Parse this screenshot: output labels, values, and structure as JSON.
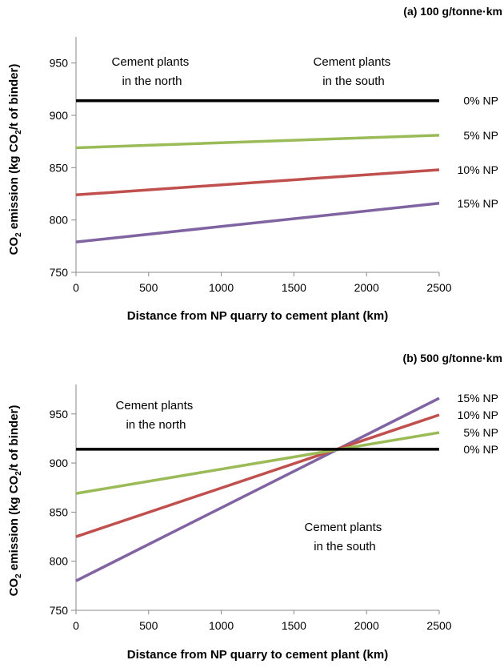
{
  "chart_data": [
    {
      "type": "line",
      "title": "(a) 100 g/tonne·km",
      "xlabel": "Distance from NP quarry to cement plant (km)",
      "ylabel_parts": [
        "CO",
        "2",
        " emission (kg CO",
        "2",
        "/t of binder)"
      ],
      "xlim": [
        0,
        2500
      ],
      "ylim": [
        750,
        975
      ],
      "xticks": [
        0,
        500,
        1000,
        1500,
        2000,
        2500
      ],
      "yticks": [
        750,
        800,
        850,
        900,
        950
      ],
      "grid": false,
      "legend": "line-end labels",
      "series": [
        {
          "name": "0% NP",
          "color": "#000000",
          "x": [
            0,
            2500
          ],
          "y": [
            914,
            914
          ]
        },
        {
          "name": "5% NP",
          "color": "#9bbb59",
          "x": [
            0,
            2500
          ],
          "y": [
            869,
            881
          ]
        },
        {
          "name": "10% NP",
          "color": "#c0504d",
          "x": [
            0,
            2500
          ],
          "y": [
            824,
            848
          ]
        },
        {
          "name": "15% NP",
          "color": "#8064a2",
          "x": [
            0,
            2500
          ],
          "y": [
            779,
            816
          ]
        }
      ],
      "annotations": [
        {
          "lines": [
            "Cement plants",
            "in the north"
          ]
        },
        {
          "lines": [
            "Cement plants",
            "in the south"
          ]
        }
      ]
    },
    {
      "type": "line",
      "title": "(b) 500 g/tonne·km",
      "xlabel": "Distance from NP quarry to cement plant (km)",
      "ylabel_parts": [
        "CO",
        "2",
        " emission (kg CO",
        "2",
        "/t of binder)"
      ],
      "xlim": [
        0,
        2500
      ],
      "ylim": [
        750,
        980
      ],
      "xticks": [
        0,
        500,
        1000,
        1500,
        2000,
        2500
      ],
      "yticks": [
        750,
        800,
        850,
        900,
        950
      ],
      "grid": false,
      "legend": "line-end labels",
      "series": [
        {
          "name": "15% NP",
          "color": "#8064a2",
          "x": [
            0,
            2500
          ],
          "y": [
            780,
            966
          ]
        },
        {
          "name": "10% NP",
          "color": "#c0504d",
          "x": [
            0,
            2500
          ],
          "y": [
            825,
            949
          ]
        },
        {
          "name": "5% NP",
          "color": "#9bbb59",
          "x": [
            0,
            2500
          ],
          "y": [
            869,
            931
          ]
        },
        {
          "name": "0% NP",
          "color": "#000000",
          "x": [
            0,
            2500
          ],
          "y": [
            914,
            914
          ]
        }
      ],
      "annotations": [
        {
          "lines": [
            "Cement plants",
            "in the north"
          ]
        },
        {
          "lines": [
            "Cement plants",
            "in the south"
          ]
        }
      ]
    }
  ]
}
